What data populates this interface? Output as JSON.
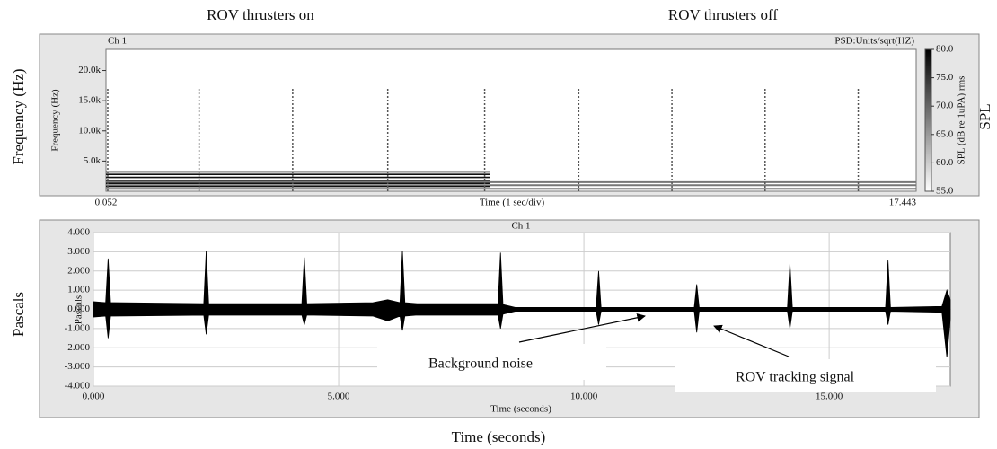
{
  "figure": {
    "top_left": "ROV thrusters on",
    "top_right": "ROV thrusters off",
    "left_top": "Frequency (Hz)",
    "right_top": "SPL",
    "left_bottom": "Pascals",
    "bottom": "Time (seconds)"
  },
  "chart_data": [
    {
      "type": "spectrogram",
      "title": "Ch 1",
      "unit_label": "PSD:Units/sqrt(HZ)",
      "ylabel": "Frequency (Hz)",
      "xlabel": "Time (1 sec/div)",
      "xlim": [
        0.052,
        17.443
      ],
      "xticks": [
        0.052,
        17.443
      ],
      "ylim": [
        0,
        23500
      ],
      "yticks": [
        {
          "value": 5000,
          "label": "5.0k"
        },
        {
          "value": 10000,
          "label": "10.0k"
        },
        {
          "value": 15000,
          "label": "15.0k"
        },
        {
          "value": 20000,
          "label": "20.0k"
        }
      ],
      "zlim": [
        55,
        80
      ],
      "zticks": [
        {
          "value": 55,
          "label": "55.0"
        },
        {
          "value": 60,
          "label": "60.0"
        },
        {
          "value": 65,
          "label": "65.0"
        },
        {
          "value": 70,
          "label": "70.0"
        },
        {
          "value": 75,
          "label": "75.0"
        },
        {
          "value": 80,
          "label": "80.0"
        }
      ],
      "colorbar_label": "SPL (dB re 1uPA) rms",
      "pulse_times": [
        0.09,
        2.05,
        4.06,
        6.1,
        8.18,
        10.2,
        12.2,
        14.2,
        16.2
      ],
      "pulse_top": 17000,
      "tone_end": 8.3,
      "tone_freqs_on": [
        800,
        1300,
        1800,
        2300,
        2800,
        3200
      ],
      "tone_freqs_all": [
        400,
        1000,
        1500
      ]
    },
    {
      "type": "line",
      "title": "Ch 1",
      "ylabel": "Pascals",
      "xlabel": "Time (seconds)",
      "grid": true,
      "color": "#000000",
      "xlim": [
        0,
        17.47
      ],
      "xticks": [
        {
          "value": 0,
          "label": "0.000"
        },
        {
          "value": 5,
          "label": "5.000"
        },
        {
          "value": 10,
          "label": "10.000"
        },
        {
          "value": 15,
          "label": "15.000"
        }
      ],
      "ylim": [
        -4,
        4
      ],
      "yticks": [
        {
          "value": 4,
          "label": "4.000"
        },
        {
          "value": 3,
          "label": "3.000"
        },
        {
          "value": 2,
          "label": "2.000"
        },
        {
          "value": 1,
          "label": "1.000"
        },
        {
          "value": 0,
          "label": "0.000"
        },
        {
          "value": -1,
          "label": "-1.000"
        },
        {
          "value": -2,
          "label": "-2.000"
        },
        {
          "value": -3,
          "label": "-3.000"
        },
        {
          "value": -4,
          "label": "-4.000"
        }
      ],
      "x": [
        0,
        0.25,
        0.3,
        0.35,
        2.25,
        2.3,
        2.35,
        4.25,
        4.3,
        4.35,
        5.7,
        6.0,
        6.25,
        6.3,
        6.35,
        6.6,
        8.25,
        8.3,
        8.35,
        8.6,
        10.25,
        10.3,
        10.35,
        12.25,
        12.3,
        12.35,
        14.15,
        14.2,
        14.25,
        16.15,
        16.2,
        16.25,
        17.3,
        17.4,
        17.47
      ],
      "series": [
        {
          "values": [
            0.4,
            0.35,
            2.65,
            0.35,
            0.3,
            3.05,
            0.3,
            0.3,
            2.7,
            0.3,
            0.35,
            0.5,
            0.35,
            3.05,
            0.35,
            0.3,
            0.3,
            2.95,
            0.25,
            0.1,
            0.1,
            2.0,
            0.1,
            0.1,
            1.3,
            0.1,
            0.1,
            2.4,
            0.1,
            0.1,
            2.55,
            0.1,
            0.15,
            1.0,
            0.5
          ]
        },
        {
          "values": [
            -0.4,
            -0.35,
            -1.5,
            -0.35,
            -0.3,
            -1.3,
            -0.3,
            -0.3,
            -0.8,
            -0.3,
            -0.35,
            -0.6,
            -0.35,
            -1.1,
            -0.35,
            -0.3,
            -0.3,
            -1.0,
            -0.25,
            -0.1,
            -0.1,
            -0.8,
            -0.1,
            -0.1,
            -1.2,
            -0.1,
            -0.1,
            -1.0,
            -0.1,
            -0.1,
            -0.8,
            -0.1,
            -0.15,
            -2.5,
            -0.5
          ]
        }
      ],
      "annotations": [
        "Background noise",
        "ROV tracking signal"
      ]
    }
  ]
}
